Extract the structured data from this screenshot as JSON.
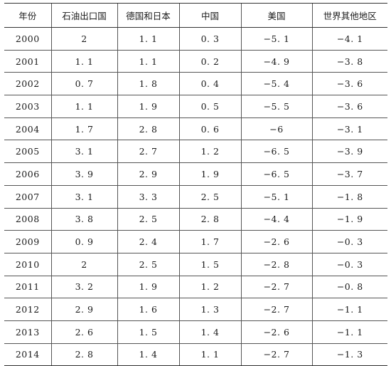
{
  "table": {
    "headers": [
      "年份",
      "石油出口国",
      "德国和日本",
      "中国",
      "美国",
      "世界其他地区"
    ],
    "rows": [
      [
        "2000",
        "2",
        "1. 1",
        "0. 3",
        "−5. 1",
        "−4. 1"
      ],
      [
        "2001",
        "1. 1",
        "1. 1",
        "0. 2",
        "−4. 9",
        "−3. 8"
      ],
      [
        "2002",
        "0. 7",
        "1. 8",
        "0. 4",
        "−5. 4",
        "−3. 6"
      ],
      [
        "2003",
        "1. 1",
        "1. 9",
        "0. 5",
        "−5. 5",
        "−3. 6"
      ],
      [
        "2004",
        "1. 7",
        "2. 8",
        "0. 6",
        "−6",
        "−3. 1"
      ],
      [
        "2005",
        "3. 1",
        "2. 7",
        "1. 2",
        "−6. 5",
        "−3. 9"
      ],
      [
        "2006",
        "3. 9",
        "2. 9",
        "1. 9",
        "−6. 5",
        "−3. 7"
      ],
      [
        "2007",
        "3. 1",
        "3. 3",
        "2. 5",
        "−5. 1",
        "−1. 8"
      ],
      [
        "2008",
        "3. 8",
        "2. 5",
        "2. 8",
        "−4. 4",
        "−1. 9"
      ],
      [
        "2009",
        "0. 9",
        "2. 4",
        "1. 7",
        "−2. 6",
        "−0. 3"
      ],
      [
        "2010",
        "2",
        "2. 5",
        "1. 5",
        "−2. 8",
        "−0. 3"
      ],
      [
        "2011",
        "3. 2",
        "1. 9",
        "1. 2",
        "−2. 7",
        "−0. 8"
      ],
      [
        "2012",
        "2. 9",
        "1. 6",
        "1. 3",
        "−2. 7",
        "−1. 1"
      ],
      [
        "2013",
        "2. 6",
        "1. 5",
        "1. 4",
        "−2. 6",
        "−1. 1"
      ],
      [
        "2014",
        "2. 8",
        "1. 4",
        "1. 1",
        "−2. 7",
        "−1. 3"
      ]
    ]
  }
}
